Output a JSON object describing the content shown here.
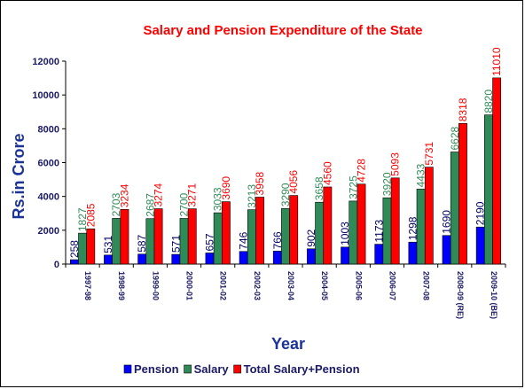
{
  "chart_data": {
    "type": "bar",
    "title": "Salary and Pension Expenditure of the State",
    "xlabel": "Year",
    "ylabel": "Rs.in Crore",
    "ylim": [
      0,
      12000
    ],
    "yticks": [
      0,
      2000,
      4000,
      6000,
      8000,
      10000,
      12000
    ],
    "grid": false,
    "legend_position": "bottom",
    "categories": [
      "1997-98",
      "1998-99",
      "1999-00",
      "2000-01",
      "2001-02",
      "2002-03",
      "2003-04",
      "2004-05",
      "2005-06",
      "2006-07",
      "2007-08",
      "2008-09 (RE)",
      "2009-10 (BE)"
    ],
    "series": [
      {
        "name": "Pension",
        "color": "#0000ff",
        "label_color": "#000066",
        "values": [
          258,
          531,
          587,
          571,
          657,
          746,
          766,
          902,
          1003,
          1173,
          1298,
          1690,
          2190
        ]
      },
      {
        "name": "Salary",
        "color": "#2e8b57",
        "label_color": "#2e8b57",
        "values": [
          1827,
          2703,
          2687,
          2700,
          3033,
          3213,
          3290,
          3658,
          3725,
          3920,
          4433,
          6628,
          8820
        ]
      },
      {
        "name": "Total Salary+Pension",
        "color": "#ff0000",
        "label_color": "#ff0000",
        "values": [
          2085,
          3234,
          3274,
          3271,
          3690,
          3958,
          4056,
          4560,
          4728,
          5093,
          5731,
          8318,
          11010
        ]
      }
    ]
  }
}
